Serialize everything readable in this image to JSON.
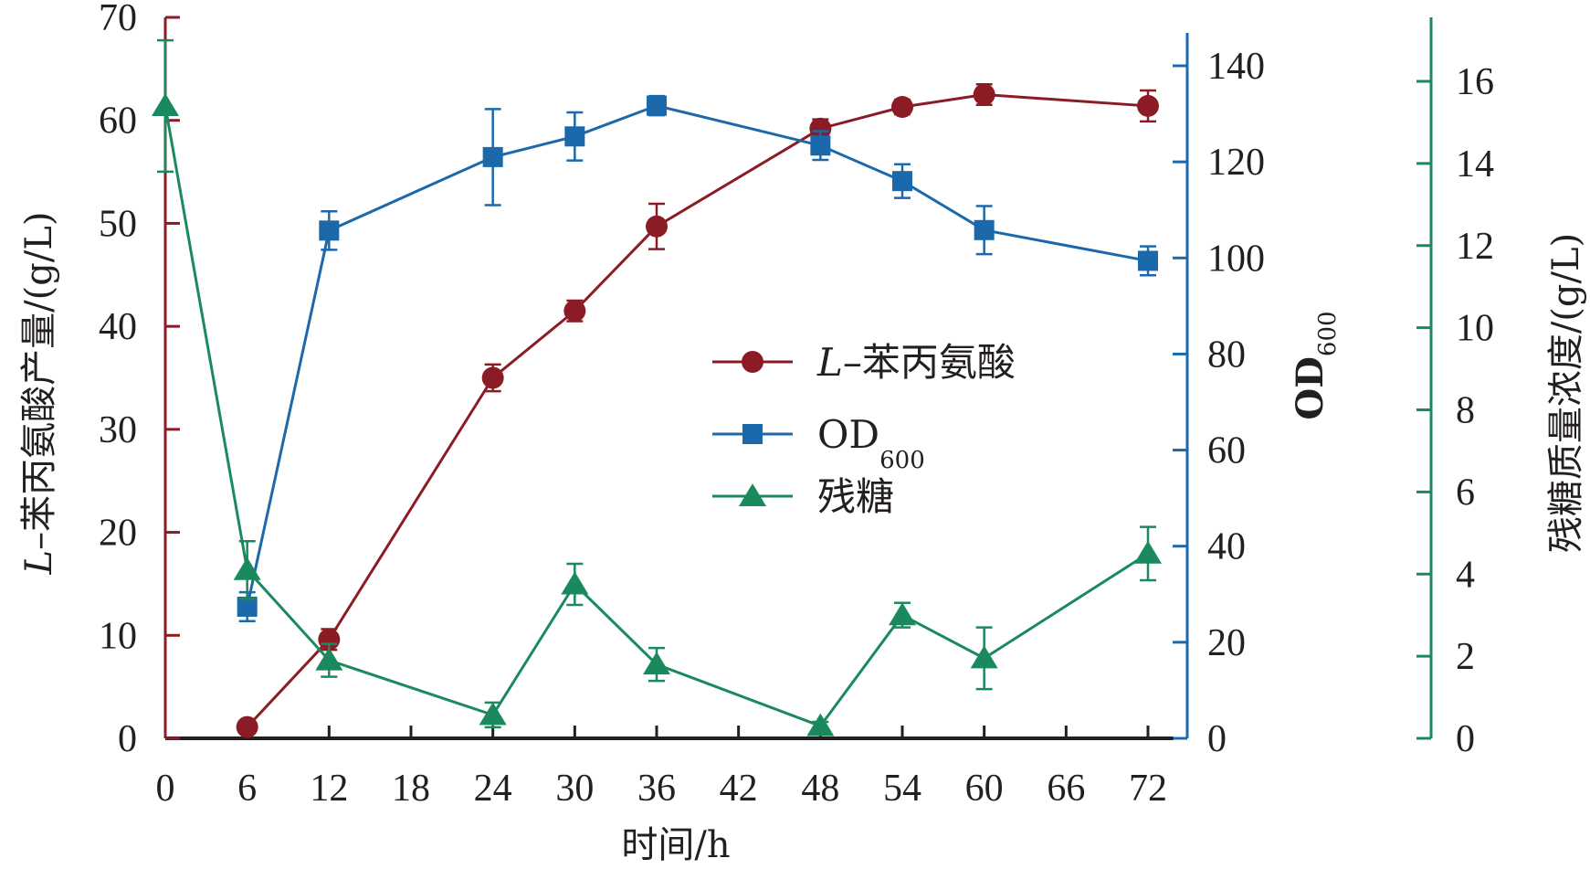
{
  "chart_data": {
    "type": "line",
    "title": "",
    "xlabel": "时间/h",
    "x_ticks": [
      0,
      6,
      12,
      18,
      24,
      30,
      36,
      42,
      48,
      54,
      60,
      66,
      72
    ],
    "xlim": [
      0,
      72
    ],
    "axes": {
      "left": {
        "label_italic": "L",
        "label_rest": "–苯丙氨酸产量/(g/L)",
        "ylim": [
          0,
          70
        ],
        "ticks": [
          0,
          10,
          20,
          30,
          40,
          50,
          60,
          70
        ],
        "color": "#8b1c26"
      },
      "right1": {
        "label_main": "OD",
        "label_sub": "600",
        "ylim": [
          0,
          140
        ],
        "ticks": [
          0,
          20,
          40,
          60,
          80,
          100,
          120,
          140
        ],
        "color": "#1b69ab"
      },
      "right2": {
        "label": "残糖质量浓度/(g/L)",
        "ylim": [
          0,
          16
        ],
        "ticks": [
          0,
          2,
          4,
          6,
          8,
          10,
          12,
          14,
          16
        ],
        "color": "#1a8a5e"
      }
    },
    "series": [
      {
        "name": "L-苯丙氨酸",
        "legend_italic": "L",
        "legend_rest": "–苯丙氨酸",
        "axis": "left",
        "marker": "circle",
        "color": "#8b1c26",
        "x": [
          6,
          12,
          24,
          30,
          36,
          48,
          54,
          60,
          72
        ],
        "y": [
          1.1,
          9.6,
          35.0,
          41.5,
          49.7,
          59.2,
          61.3,
          62.5,
          61.4
        ],
        "err": [
          0.3,
          1.0,
          1.3,
          1.0,
          2.2,
          0.9,
          0.7,
          1.0,
          1.5
        ]
      },
      {
        "name": "OD600",
        "legend_main": "OD",
        "legend_sub": "600",
        "axis": "right1",
        "marker": "square",
        "color": "#1b69ab",
        "x": [
          6,
          12,
          24,
          30,
          36,
          48,
          54,
          60,
          72
        ],
        "y": [
          27.4,
          105.7,
          121.0,
          125.3,
          131.7,
          123.4,
          116.0,
          105.8,
          99.4
        ],
        "err": [
          3.0,
          4.0,
          10.0,
          5.0,
          2.0,
          3.0,
          3.5,
          5.0,
          3.0
        ]
      },
      {
        "name": "残糖",
        "legend": "残糖",
        "axis": "right2",
        "marker": "triangle",
        "color": "#1a8a5e",
        "x": [
          0,
          6,
          12,
          24,
          30,
          36,
          48,
          54,
          60,
          72
        ],
        "y": [
          15.4,
          4.1,
          1.9,
          0.57,
          3.75,
          1.8,
          0.3,
          3.0,
          1.95,
          4.5
        ],
        "err": [
          1.6,
          0.7,
          0.4,
          0.3,
          0.5,
          0.4,
          0.1,
          0.3,
          0.75,
          0.65
        ]
      }
    ],
    "legend_position": "center",
    "grid": false
  }
}
